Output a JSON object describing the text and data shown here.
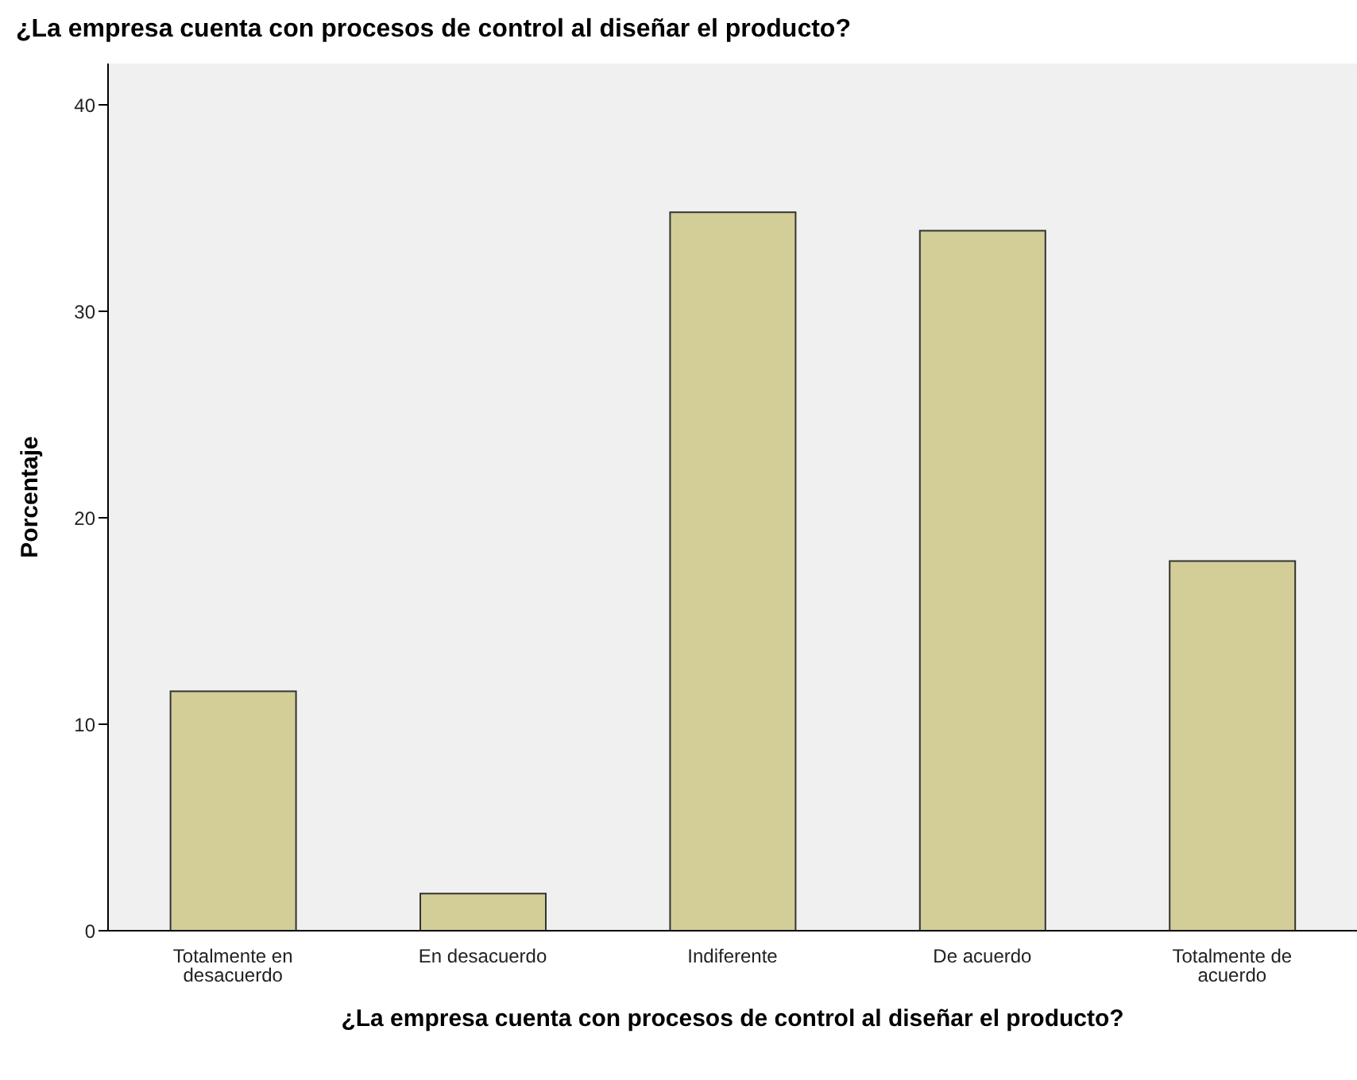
{
  "chart_data": {
    "type": "bar",
    "title": "¿La empresa cuenta con procesos de control al diseñar el producto?",
    "xlabel": "¿La empresa cuenta con procesos de control al diseñar el producto?",
    "ylabel": "Porcentaje",
    "categories": [
      "Totalmente en desacuerdo",
      "En desacuerdo",
      "Indiferente",
      "De acuerdo",
      "Totalmente de acuerdo"
    ],
    "values": [
      11.6,
      1.8,
      34.8,
      33.9,
      17.9
    ],
    "color": "#d3ce97",
    "ylim": [
      0,
      42
    ],
    "yticks": [
      0,
      10,
      20,
      30,
      40
    ],
    "grid": false,
    "legend": false
  }
}
